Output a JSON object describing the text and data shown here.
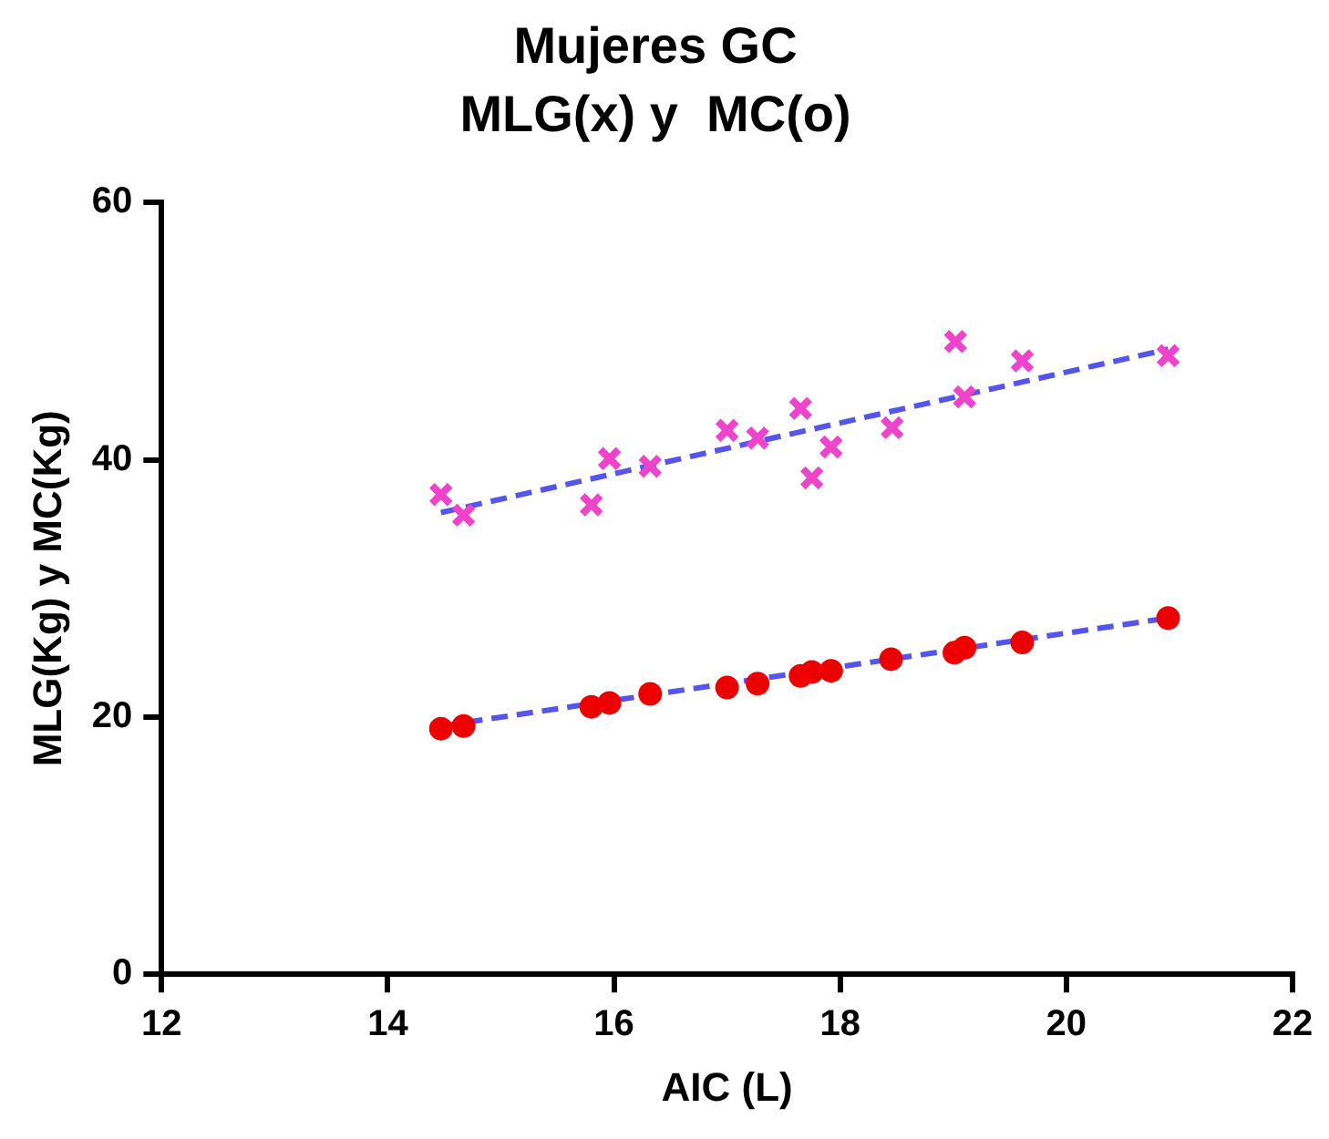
{
  "chart_data": {
    "type": "scatter",
    "title": "Mujeres GC",
    "subtitle": "MLG(x) y  MC(o)",
    "xlabel": "AIC (L)",
    "ylabel": "MLG(Kg) y MC(Kg)",
    "xlim": [
      12,
      22
    ],
    "xticks": [
      12,
      14,
      16,
      18,
      20,
      22
    ],
    "ylim": [
      0,
      60
    ],
    "yticks": [
      0,
      20,
      40,
      60
    ],
    "grid": false,
    "legend": false,
    "series": [
      {
        "type": "scatter",
        "marker": "cross",
        "color": "#ee44cc",
        "x": [
          14.47,
          14.67,
          15.8,
          15.96,
          16.32,
          17.0,
          17.27,
          17.65,
          17.75,
          17.92,
          18.46,
          19.02,
          19.1,
          19.61,
          20.9
        ],
        "values": [
          37.3,
          35.7,
          36.5,
          40.1,
          39.5,
          42.3,
          41.7,
          44.0,
          38.6,
          41.0,
          42.5,
          49.2,
          44.9,
          47.7,
          48.1
        ]
      },
      {
        "type": "scatter",
        "marker": "circle",
        "color": "#ee0000",
        "x": [
          14.47,
          14.67,
          15.8,
          15.96,
          16.32,
          17.0,
          17.27,
          17.65,
          17.75,
          17.92,
          18.45,
          19.01,
          19.1,
          19.61,
          20.9
        ],
        "values": [
          19.1,
          19.3,
          20.8,
          21.1,
          21.8,
          22.3,
          22.6,
          23.2,
          23.5,
          23.6,
          24.5,
          25.0,
          25.4,
          25.8,
          27.7
        ]
      },
      {
        "type": "line",
        "marker": "none",
        "line_style": "dashed",
        "color": "#5555ee",
        "x": [
          14.47,
          20.9
        ],
        "values": [
          35.9,
          48.6
        ]
      },
      {
        "type": "line",
        "marker": "none",
        "line_style": "dashed",
        "color": "#5555ee",
        "x": [
          14.47,
          20.9
        ],
        "values": [
          19.3,
          27.7
        ]
      }
    ]
  }
}
